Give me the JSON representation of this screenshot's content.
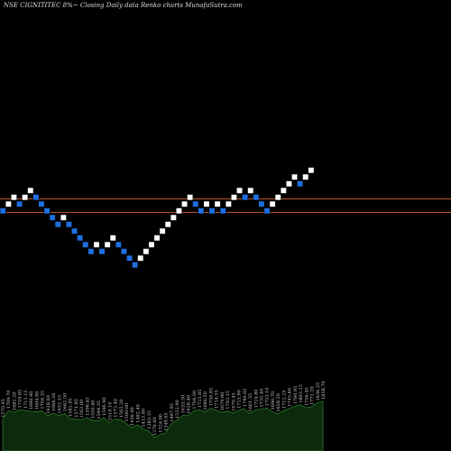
{
  "chart_data": {
    "type": "renko",
    "title": "NSE CIGNITITEC 8%~  Closing Daily data  Renko  charts MunafaSutra.com",
    "box_size_pct": 8,
    "horizontal_lines": [
      {
        "value": 1800,
        "color": "#b8562a"
      },
      {
        "value": 1700,
        "color": "#b8562a"
      }
    ],
    "bricks": [
      {
        "level": 1720,
        "dir": "down"
      },
      {
        "level": 1770,
        "dir": "up"
      },
      {
        "level": 1820,
        "dir": "up"
      },
      {
        "level": 1770,
        "dir": "down"
      },
      {
        "level": 1820,
        "dir": "up"
      },
      {
        "level": 1870,
        "dir": "up"
      },
      {
        "level": 1820,
        "dir": "down"
      },
      {
        "level": 1770,
        "dir": "down"
      },
      {
        "level": 1720,
        "dir": "down"
      },
      {
        "level": 1670,
        "dir": "down"
      },
      {
        "level": 1620,
        "dir": "down"
      },
      {
        "level": 1670,
        "dir": "up"
      },
      {
        "level": 1620,
        "dir": "down"
      },
      {
        "level": 1570,
        "dir": "down"
      },
      {
        "level": 1520,
        "dir": "down"
      },
      {
        "level": 1470,
        "dir": "down"
      },
      {
        "level": 1420,
        "dir": "down"
      },
      {
        "level": 1470,
        "dir": "up"
      },
      {
        "level": 1420,
        "dir": "down"
      },
      {
        "level": 1470,
        "dir": "up"
      },
      {
        "level": 1520,
        "dir": "up"
      },
      {
        "level": 1470,
        "dir": "down"
      },
      {
        "level": 1420,
        "dir": "down"
      },
      {
        "level": 1370,
        "dir": "down"
      },
      {
        "level": 1320,
        "dir": "down"
      },
      {
        "level": 1370,
        "dir": "up"
      },
      {
        "level": 1420,
        "dir": "up"
      },
      {
        "level": 1470,
        "dir": "up"
      },
      {
        "level": 1520,
        "dir": "up"
      },
      {
        "level": 1570,
        "dir": "up"
      },
      {
        "level": 1620,
        "dir": "up"
      },
      {
        "level": 1670,
        "dir": "up"
      },
      {
        "level": 1720,
        "dir": "up"
      },
      {
        "level": 1770,
        "dir": "up"
      },
      {
        "level": 1820,
        "dir": "up"
      },
      {
        "level": 1770,
        "dir": "down"
      },
      {
        "level": 1720,
        "dir": "down"
      },
      {
        "level": 1770,
        "dir": "up"
      },
      {
        "level": 1720,
        "dir": "down"
      },
      {
        "level": 1770,
        "dir": "up"
      },
      {
        "level": 1720,
        "dir": "down"
      },
      {
        "level": 1770,
        "dir": "up"
      },
      {
        "level": 1820,
        "dir": "up"
      },
      {
        "level": 1870,
        "dir": "up"
      },
      {
        "level": 1820,
        "dir": "down"
      },
      {
        "level": 1870,
        "dir": "up"
      },
      {
        "level": 1820,
        "dir": "down"
      },
      {
        "level": 1770,
        "dir": "down"
      },
      {
        "level": 1720,
        "dir": "down"
      },
      {
        "level": 1770,
        "dir": "up"
      },
      {
        "level": 1820,
        "dir": "up"
      },
      {
        "level": 1870,
        "dir": "up"
      },
      {
        "level": 1920,
        "dir": "up"
      },
      {
        "level": 1970,
        "dir": "up"
      },
      {
        "level": 1920,
        "dir": "down"
      },
      {
        "level": 1970,
        "dir": "up"
      },
      {
        "level": 2020,
        "dir": "up"
      }
    ],
    "volume_labels": [
      "1570.95",
      "1709.70",
      "1682.20",
      "1719.85",
      "1711.15",
      "1696.40",
      "1694.80",
      "1704.35",
      "1628.60",
      "1666.20",
      "1632.15",
      "1662.50",
      "1581.95",
      "1571.85",
      "1562.00",
      "1598.45",
      "1550.40",
      "1544.35",
      "1596.90",
      "1519.10",
      "1572.40",
      "1565.20",
      "1500.60",
      "1436.40",
      "1482.40",
      "1413.80",
      "1383.35",
      "1276.60",
      "1324.90",
      "1349.65",
      "1497.95",
      "1552.90",
      "1633.50",
      "1628.40",
      "1704.00",
      "1723.85",
      "1686.50",
      "1750.85",
      "1714.35",
      "1679.90",
      "1703.15",
      "1670.45",
      "1713.90",
      "1740.05",
      "1661.35",
      "1724.80",
      "1735.40",
      "1753.10",
      "1690.70",
      "1658.50",
      "1712.25",
      "1745.60",
      "1780.95",
      "1803.15",
      "1756.45",
      "1771.20",
      "1836.25",
      "1858.70"
    ],
    "colors": {
      "up": "#ffffff",
      "down": "#1e6fe0",
      "volume_fill": "#0c2a0c",
      "volume_top": "#2e7a2e"
    }
  }
}
